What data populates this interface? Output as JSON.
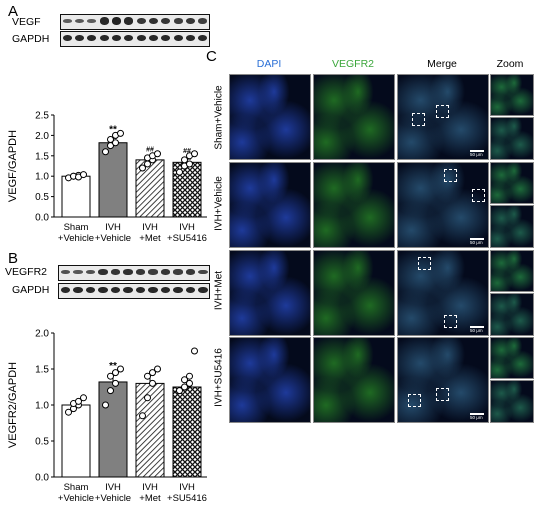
{
  "panels": {
    "A": {
      "letter": "A",
      "blot_labels": [
        "VEGF",
        "GAPDH"
      ],
      "chart_data": {
        "type": "bar",
        "categories": [
          "Sham\n+Vehicle",
          "IVH\n+Vehicle",
          "IVH\n+Met",
          "IVH\n+SU5416"
        ],
        "values": [
          1.0,
          1.82,
          1.4,
          1.34
        ],
        "errors": [
          0.03,
          0.11,
          0.06,
          0.08
        ],
        "points": [
          [
            0.96,
            1.0,
            1.02,
            1.0,
            0.98,
            1.04
          ],
          [
            1.6,
            1.75,
            1.82,
            1.9,
            2.0,
            2.05
          ],
          [
            1.2,
            1.3,
            1.4,
            1.45,
            1.5,
            1.55
          ],
          [
            1.1,
            1.25,
            1.3,
            1.4,
            1.5,
            1.55
          ]
        ],
        "significance": [
          "",
          "**",
          "##",
          "##"
        ],
        "ylabel": "VEGF/GAPDH",
        "ylim": [
          0,
          2.5
        ],
        "yticks": [
          "0.0",
          "0.5",
          "1.0",
          "1.5",
          "2.0",
          "2.5"
        ]
      }
    },
    "B": {
      "letter": "B",
      "blot_labels": [
        "VEGFR2",
        "GAPDH"
      ],
      "chart_data": {
        "type": "bar",
        "categories": [
          "Sham\n+Vehicle",
          "IVH\n+Vehicle",
          "IVH\n+Met",
          "IVH\n+SU5416"
        ],
        "values": [
          1.0,
          1.32,
          1.3,
          1.25
        ],
        "errors": [
          0.05,
          0.1,
          0.12,
          0.13
        ],
        "points": [
          [
            0.9,
            0.95,
            1.0,
            1.02,
            1.05,
            1.1
          ],
          [
            1.0,
            1.2,
            1.3,
            1.4,
            1.45,
            1.5
          ],
          [
            0.85,
            1.1,
            1.3,
            1.4,
            1.45,
            1.5
          ],
          [
            1.2,
            1.25,
            1.3,
            1.35,
            1.4,
            1.75
          ]
        ],
        "significance": [
          "",
          "**",
          "",
          ""
        ],
        "ylabel": "VEGFR2/GAPDH",
        "ylim": [
          0,
          2.0
        ],
        "yticks": [
          "0.0",
          "0.5",
          "1.0",
          "1.5",
          "2.0"
        ]
      }
    },
    "C": {
      "letter": "C",
      "columns": [
        "DAPI",
        "VEGFR2",
        "Merge",
        "Zoom"
      ],
      "column_colors": [
        "#2a6fd6",
        "#3aa63a",
        "#000000",
        "#000000"
      ],
      "rows": [
        "Sham+Vehicle",
        "IVH+Vehicle",
        "IVH+Met",
        "IVH+SU5416"
      ],
      "scale_label": "50 μm"
    }
  }
}
